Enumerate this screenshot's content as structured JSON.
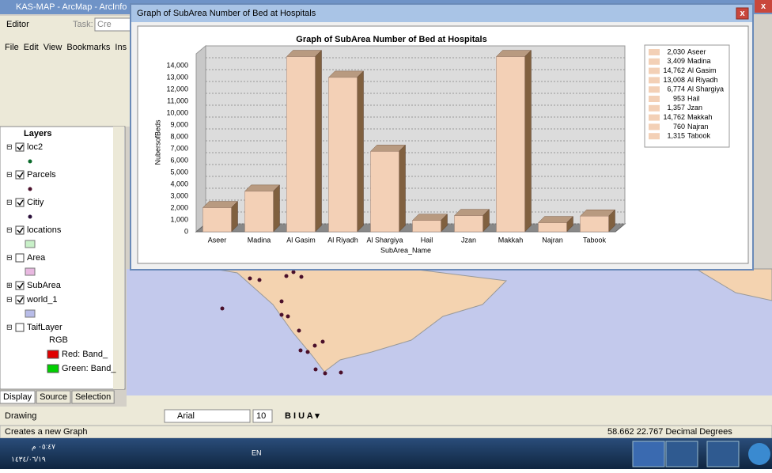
{
  "app_title": "KAS-MAP - ArcMap - ArcInfo",
  "toolbar": {
    "editor": "Editor",
    "task": "Task:",
    "task_value": "Cre"
  },
  "menu": [
    "File",
    "Edit",
    "View",
    "Bookmarks",
    "Ins"
  ],
  "toc": {
    "root": "Layers",
    "layers": [
      {
        "name": "loc2",
        "checked": true
      },
      {
        "name": "Parcels",
        "checked": true
      },
      {
        "name": "Citiy",
        "checked": true
      },
      {
        "name": "locations",
        "checked": true
      },
      {
        "name": "Area",
        "checked": false
      },
      {
        "name": "SubArea",
        "checked": true
      },
      {
        "name": "world_1",
        "checked": true
      },
      {
        "name": "TaifLayer",
        "checked": false
      }
    ],
    "rgb": "RGB",
    "bands": [
      "Red:  Band_",
      "Green: Band_"
    ]
  },
  "tabs": [
    "Display",
    "Source",
    "Selection"
  ],
  "drawing": {
    "label": "Drawing",
    "font": "Arial",
    "size": "10"
  },
  "status": {
    "message": "Creates a new Graph",
    "coords": "58.662  22.767 Decimal Degrees"
  },
  "taskbar": {
    "time": "٠٥:٤٧ م",
    "date": "١٤٣٤/٠٦/١٩",
    "lang": "EN"
  },
  "graph_window": {
    "title": "Graph of SubArea Number of Bed at Hospitals"
  },
  "chart_data": {
    "type": "bar",
    "title": "Graph of SubArea Number of Bed at Hospitals",
    "x_label": "SubArea_Name",
    "y_label": "NubersofBeds",
    "categories": [
      "Aseer",
      "Madina",
      "Al Gasim",
      "Al Riyadh",
      "Al Shargiya",
      "Hail",
      "Jzan",
      "Makkah",
      "Najran",
      "Tabook"
    ],
    "values": [
      2030,
      3409,
      14762,
      13008,
      6774,
      953,
      1357,
      14762,
      760,
      1315
    ],
    "value_labels": [
      "2,030",
      "3,409",
      "14,762",
      "13,008",
      "6,774",
      "953",
      "1,357",
      "14,762",
      "760",
      "1,315"
    ],
    "color": "#f3d0b6",
    "ylim": [
      0,
      15000
    ],
    "yticks": [
      0,
      {
        "value": 1000,
        "label": "1,000"
      },
      {
        "value": 2000,
        "label": "2,000"
      },
      {
        "value": 3000,
        "label": "3,000"
      },
      {
        "value": 4000,
        "label": "4,000"
      },
      {
        "value": 5000,
        "label": "5,000"
      },
      {
        "value": 6000,
        "label": "6,000"
      },
      {
        "value": 7000,
        "label": "7,000"
      },
      {
        "value": 8000,
        "label": "8,000"
      },
      {
        "value": 9000,
        "label": "9,000"
      },
      {
        "value": 10000,
        "label": "10,000"
      },
      {
        "value": 11000,
        "label": "11,000"
      },
      {
        "value": 12000,
        "label": "12,000"
      },
      {
        "value": 13000,
        "label": "13,000"
      },
      {
        "value": 14000,
        "label": "14,000"
      }
    ],
    "grid": true,
    "legend": "right"
  }
}
